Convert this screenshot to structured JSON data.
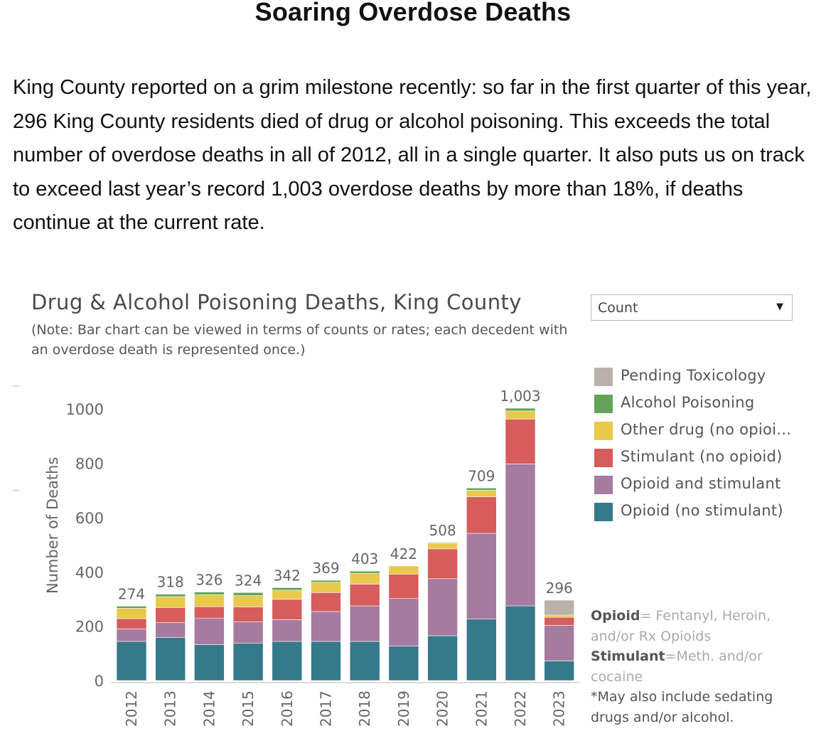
{
  "article": {
    "headline": "Soaring Overdose Deaths",
    "body": "King County reported on a grim milestone recently: so far in the first quarter of this year, 296 King County residents died of drug or alcohol poisoning.  This exceeds the total number of overdose deaths in all of 2012, all in a single quarter.  It also puts us on track to exceed last year’s record 1,003 overdose deaths by more than 18%, if deaths continue at the current rate."
  },
  "dashboard": {
    "title": "Drug & Alcohol Poisoning Deaths, King County",
    "note": "(Note: Bar chart can be viewed in terms of counts or rates; each decedent with an overdose death is represented once.)",
    "measure_select": {
      "value": "Count"
    },
    "footnotes": {
      "opioid_key": "Opioid",
      "opioid_def": "= Fentanyl, Heroin, and/or Rx Opioids",
      "stimulant_key": "Stimulant",
      "stimulant_def": "=Meth. and/or cocaine",
      "sedating": "*May also include sedating drugs and/or alcohol."
    }
  },
  "chart_data": {
    "type": "bar",
    "stacked": true,
    "title": "Drug & Alcohol Poisoning Deaths, King County",
    "xlabel": "",
    "ylabel": "Number of Deaths",
    "ylim": [
      0,
      1100
    ],
    "yticks": [
      0,
      200,
      400,
      600,
      800,
      1000
    ],
    "grid": false,
    "legend_position": "right",
    "categories": [
      "2012",
      "2013",
      "2014",
      "2015",
      "2016",
      "2017",
      "2018",
      "2019",
      "2020",
      "2021",
      "2022",
      "2023"
    ],
    "totals": [
      "274",
      "318",
      "326",
      "324",
      "342",
      "369",
      "403",
      "422",
      "508",
      "709",
      "1,003",
      "296"
    ],
    "series": [
      {
        "name": "Opioid (no stimulant)",
        "color": "#35798b",
        "values": [
          144,
          158,
          132,
          137,
          144,
          144,
          144,
          127,
          165,
          226,
          275,
          72
        ]
      },
      {
        "name": "Opioid and stimulant",
        "color": "#a57b9f",
        "values": [
          46,
          56,
          98,
          79,
          80,
          110,
          131,
          175,
          210,
          316,
          523,
          131
        ]
      },
      {
        "name": "Stimulant (no opioid)",
        "color": "#d75c5c",
        "values": [
          38,
          55,
          42,
          55,
          75,
          70,
          80,
          90,
          110,
          135,
          165,
          30
        ]
      },
      {
        "name": "Other drug (no opioi...",
        "color": "#e9c94c",
        "values": [
          38,
          40,
          44,
          42,
          34,
          38,
          40,
          30,
          20,
          24,
          30,
          8
        ]
      },
      {
        "name": "Alcohol Poisoning",
        "color": "#63a35a",
        "values": [
          8,
          9,
          10,
          11,
          9,
          7,
          8,
          0,
          3,
          8,
          10,
          0
        ]
      },
      {
        "name": "Pending Toxicology",
        "color": "#bab0ac",
        "values": [
          0,
          0,
          0,
          0,
          0,
          0,
          0,
          0,
          0,
          0,
          0,
          55
        ]
      }
    ]
  }
}
